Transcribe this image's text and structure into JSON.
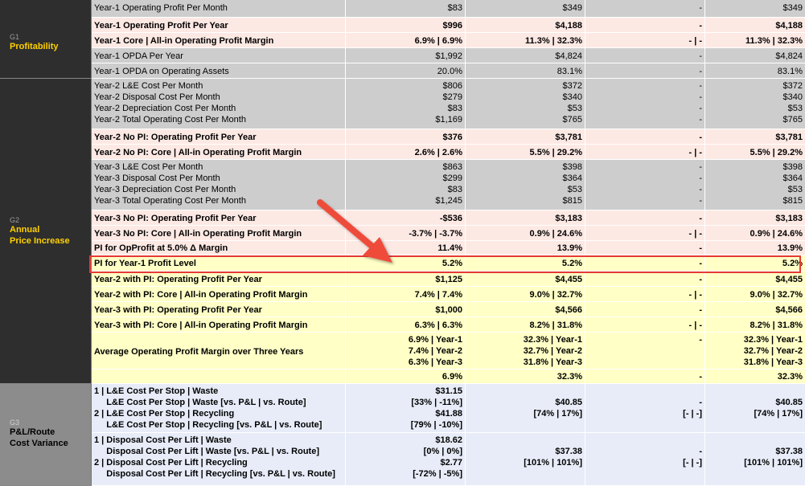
{
  "groups": [
    {
      "id": "G1",
      "name": "Profitability"
    },
    {
      "id": "G2",
      "name": "Annual\nPrice Increase"
    },
    {
      "id": "G3",
      "name": "P&L/Route\nCost Variance"
    }
  ],
  "rows": [
    {
      "style": "gray",
      "bold": false,
      "label": [
        "Year-1 Operating Profit Per Month"
      ],
      "v1": [
        "$83"
      ],
      "v2": [
        "$349"
      ],
      "v3": [
        "-"
      ],
      "v4": [
        "$349"
      ]
    },
    {
      "style": "pink",
      "bold": true,
      "label": [
        "Year-1 Operating Profit Per Year"
      ],
      "v1": [
        "$996"
      ],
      "v2": [
        "$4,188"
      ],
      "v3": [
        "-"
      ],
      "v4": [
        "$4,188"
      ]
    },
    {
      "style": "pink",
      "bold": true,
      "label": [
        "Year-1 Core | All-in Operating Profit Margin"
      ],
      "v1": [
        "6.9% | 6.9%"
      ],
      "v2": [
        "11.3% | 32.3%"
      ],
      "v3": [
        "- | -"
      ],
      "v4": [
        "11.3% | 32.3%"
      ]
    },
    {
      "style": "gray",
      "bold": false,
      "label": [
        "Year-1 OPDA Per Year"
      ],
      "v1": [
        "$1,992"
      ],
      "v2": [
        "$4,824"
      ],
      "v3": [
        "-"
      ],
      "v4": [
        "$4,824"
      ]
    },
    {
      "style": "gray",
      "bold": false,
      "label": [
        "Year-1 OPDA on Operating Assets"
      ],
      "v1": [
        "20.0%"
      ],
      "v2": [
        "83.1%"
      ],
      "v3": [
        "-"
      ],
      "v4": [
        "83.1%"
      ]
    },
    {
      "style": "gray",
      "bold": false,
      "label": [
        "Year-2 L&E Cost Per Month",
        "Year-2 Disposal Cost Per Month",
        "Year-2 Depreciation Cost Per Month",
        "Year-2 Total Operating Cost Per Month"
      ],
      "v1": [
        "$806",
        "$279",
        "$83",
        "$1,169"
      ],
      "v2": [
        "$372",
        "$340",
        "$53",
        "$765"
      ],
      "v3": [
        "-",
        "-",
        "-",
        "-"
      ],
      "v4": [
        "$372",
        "$340",
        "$53",
        "$765"
      ]
    },
    {
      "style": "pink",
      "bold": true,
      "label": [
        "Year-2 No PI: Operating Profit Per Year"
      ],
      "v1": [
        "$376"
      ],
      "v2": [
        "$3,781"
      ],
      "v3": [
        "-"
      ],
      "v4": [
        "$3,781"
      ]
    },
    {
      "style": "pink",
      "bold": true,
      "label": [
        "Year-2 No PI: Core | All-in Operating Profit Margin"
      ],
      "v1": [
        "2.6% | 2.6%"
      ],
      "v2": [
        "5.5% | 29.2%"
      ],
      "v3": [
        "- | -"
      ],
      "v4": [
        "5.5% | 29.2%"
      ]
    },
    {
      "style": "gray",
      "bold": false,
      "label": [
        "Year-3 L&E Cost Per Month",
        "Year-3 Disposal Cost Per Month",
        "Year-3 Depreciation Cost Per Month",
        "Year-3 Total Operating Cost Per Month"
      ],
      "v1": [
        "$863",
        "$299",
        "$83",
        "$1,245"
      ],
      "v2": [
        "$398",
        "$364",
        "$53",
        "$815"
      ],
      "v3": [
        "-",
        "-",
        "-",
        "-"
      ],
      "v4": [
        "$398",
        "$364",
        "$53",
        "$815"
      ]
    },
    {
      "style": "pink",
      "bold": true,
      "label": [
        "Year-3 No PI: Operating Profit Per Year"
      ],
      "v1": [
        "-$536"
      ],
      "v2": [
        "$3,183"
      ],
      "v3": [
        "-"
      ],
      "v4": [
        "$3,183"
      ]
    },
    {
      "style": "pink",
      "bold": true,
      "label": [
        "Year-3 No PI: Core | All-in Operating Profit Margin"
      ],
      "v1": [
        "-3.7% | -3.7%"
      ],
      "v2": [
        "0.9% | 24.6%"
      ],
      "v3": [
        "- | -"
      ],
      "v4": [
        "0.9% | 24.6%"
      ]
    },
    {
      "style": "pink",
      "bold": true,
      "label": [
        "PI for OpProfit at 5.0% Δ Margin"
      ],
      "v1": [
        "11.4%"
      ],
      "v2": [
        "13.9%"
      ],
      "v3": [
        "-"
      ],
      "v4": [
        "13.9%"
      ]
    },
    {
      "style": "yel",
      "bold": true,
      "label": [
        "PI for Year-1 Profit Level"
      ],
      "v1": [
        "5.2%"
      ],
      "v2": [
        "5.2%"
      ],
      "v3": [
        "-"
      ],
      "v4": [
        "5.2%"
      ]
    },
    {
      "style": "yel",
      "bold": true,
      "label": [
        "Year-2 with PI: Operating Profit Per Year"
      ],
      "v1": [
        "$1,125"
      ],
      "v2": [
        "$4,455"
      ],
      "v3": [
        "-"
      ],
      "v4": [
        "$4,455"
      ]
    },
    {
      "style": "yel",
      "bold": true,
      "label": [
        "Year-2 with PI: Core | All-in Operating Profit Margin"
      ],
      "v1": [
        "7.4% | 7.4%"
      ],
      "v2": [
        "9.0% | 32.7%"
      ],
      "v3": [
        "- | -"
      ],
      "v4": [
        "9.0% | 32.7%"
      ]
    },
    {
      "style": "yel",
      "bold": true,
      "label": [
        "Year-3 with PI: Operating Profit Per Year"
      ],
      "v1": [
        "$1,000"
      ],
      "v2": [
        "$4,566"
      ],
      "v3": [
        "-"
      ],
      "v4": [
        "$4,566"
      ]
    },
    {
      "style": "yel",
      "bold": true,
      "label": [
        "Year-3 with PI: Core | All-in Operating Profit Margin"
      ],
      "v1": [
        "6.3% | 6.3%"
      ],
      "v2": [
        "8.2% | 31.8%"
      ],
      "v3": [
        "- | -"
      ],
      "v4": [
        "8.2% | 31.8%"
      ]
    },
    {
      "style": "yel",
      "bold": true,
      "label": [
        "Average Operating Profit Margin over Three Years"
      ],
      "v1": [
        "6.9% | Year-1",
        "7.4% | Year-2",
        "6.3% | Year-3"
      ],
      "v2": [
        "32.3% | Year-1",
        "32.7% | Year-2",
        "31.8% | Year-3"
      ],
      "v3": [
        "-"
      ],
      "v4": [
        "32.3% | Year-1",
        "32.7% | Year-2",
        "31.8% | Year-3"
      ]
    },
    {
      "style": "yel",
      "bold": true,
      "label": [
        ""
      ],
      "v1": [
        "6.9%"
      ],
      "v2": [
        "32.3%"
      ],
      "v3": [
        "-"
      ],
      "v4": [
        "32.3%"
      ]
    },
    {
      "style": "blue",
      "bold": true,
      "label": [
        "1 | L&E Cost Per Stop | Waste",
        "     L&E Cost Per Stop | Waste [vs. P&L | vs. Route]",
        "2 | L&E Cost Per Stop | Recycling",
        "     L&E Cost Per Stop | Recycling [vs. P&L | vs. Route]"
      ],
      "v1": [
        "$31.15",
        "[33% | -11%]",
        "$41.88",
        "[79% | -10%]"
      ],
      "v2": [
        "",
        "$40.85",
        "[74% | 17%]",
        ""
      ],
      "v3": [
        "",
        "-",
        "[- | -]",
        ""
      ],
      "v4": [
        "",
        "$40.85",
        "[74% | 17%]",
        ""
      ]
    },
    {
      "style": "blue",
      "bold": true,
      "label": [
        "1 | Disposal Cost Per Lift | Waste",
        "     Disposal Cost Per Lift | Waste [vs. P&L | vs. Route]",
        "2 | Disposal Cost Per Lift | Recycling",
        "     Disposal Cost Per Lift | Recycling [vs. P&L | vs. Route]"
      ],
      "v1": [
        "$18.62",
        "[0% | 0%]",
        "$2.77",
        "[-72% | -5%]"
      ],
      "v2": [
        "",
        "$37.38",
        "[101% | 101%]",
        ""
      ],
      "v3": [
        "",
        "-",
        "[- | -]",
        ""
      ],
      "v4": [
        "",
        "$37.38",
        "[101% | 101%]",
        ""
      ]
    }
  ],
  "colors": {
    "accent_yellow": "#ffd100",
    "highlight_red": "#e53935",
    "arrow_red": "#ef4c3a"
  }
}
